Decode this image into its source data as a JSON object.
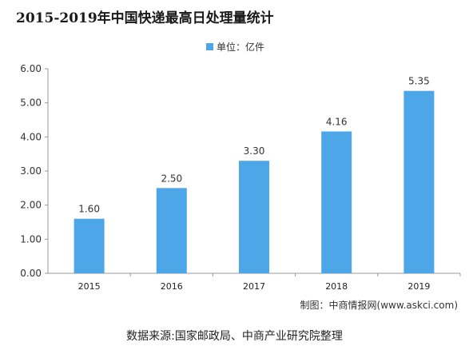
{
  "title": "2015-2019年中国快递最高日处理量统计",
  "legend_label": "单位：亿件",
  "credit": "制图：中商情报网(www.askci.com)",
  "source": "数据来源:国家邮政局、中商产业研究院整理",
  "colors": {
    "bar": "#4da6e8",
    "axis": "#999999",
    "grid": "#e6e6e6"
  },
  "chart_data": {
    "type": "bar",
    "title": "2015-2019年中国快递最高日处理量统计",
    "categories": [
      "2015",
      "2016",
      "2017",
      "2018",
      "2019"
    ],
    "values": [
      1.6,
      2.5,
      3.3,
      4.16,
      5.35
    ],
    "value_labels": [
      "1.60",
      "2.50",
      "3.30",
      "4.16",
      "5.35"
    ],
    "yticks": [
      "0.00",
      "1.00",
      "2.00",
      "3.00",
      "4.00",
      "5.00",
      "6.00"
    ],
    "ylim": [
      0,
      6
    ],
    "legend": "单位：亿件",
    "grid": false
  }
}
